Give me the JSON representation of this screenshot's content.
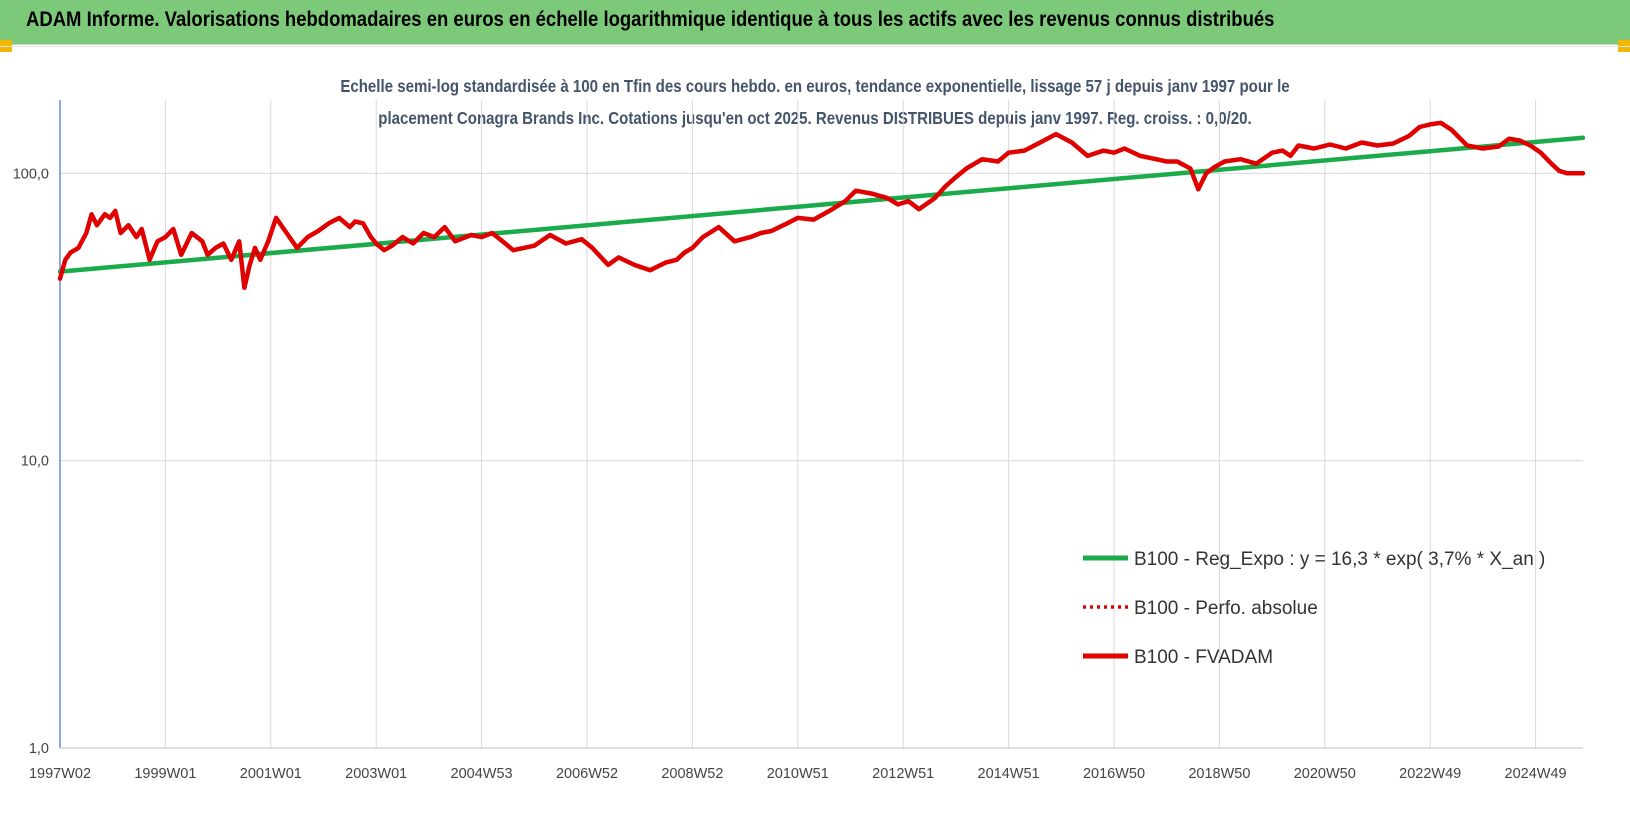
{
  "banner": {
    "title": "ADAM Informe. Valorisations hebdomadaires en euros en échelle logarithmique identique à tous les actifs avec les revenus connus distribués"
  },
  "chart_data": {
    "type": "line",
    "title_line1": "Echelle semi-log standardisée à 100 en Tfin des cours hebdo. en euros, tendance exponentielle, lissage 57 j depuis janv 1997 pour le",
    "title_line2": "placement Conagra Brands Inc. Cotations jusqu'en oct 2025.  Revenus DISTRIBUES depuis janv 1997.  Reg. croiss. : 0,0/20.",
    "y_scale": "log",
    "ylim": [
      1,
      180
    ],
    "xlim": [
      1997.0,
      2025.9
    ],
    "grid": true,
    "legend_position": "right-middle",
    "y_ticks": [
      {
        "value": 1,
        "label": "1,0"
      },
      {
        "value": 10,
        "label": "10,0"
      },
      {
        "value": 100,
        "label": "100,0"
      }
    ],
    "x_ticks": [
      {
        "value": 1997.0,
        "label": "1997W02"
      },
      {
        "value": 1999.0,
        "label": "1999W01"
      },
      {
        "value": 2001.0,
        "label": "2001W01"
      },
      {
        "value": 2003.0,
        "label": "2003W01"
      },
      {
        "value": 2005.0,
        "label": "2004W53"
      },
      {
        "value": 2007.0,
        "label": "2006W52"
      },
      {
        "value": 2009.0,
        "label": "2008W52"
      },
      {
        "value": 2011.0,
        "label": "2010W51"
      },
      {
        "value": 2013.0,
        "label": "2012W51"
      },
      {
        "value": 2015.0,
        "label": "2014W51"
      },
      {
        "value": 2017.0,
        "label": "2016W50"
      },
      {
        "value": 2019.0,
        "label": "2018W50"
      },
      {
        "value": 2021.0,
        "label": "2020W50"
      },
      {
        "value": 2023.0,
        "label": "2022W49"
      },
      {
        "value": 2025.0,
        "label": "2024W49"
      }
    ],
    "series": [
      {
        "name": "B100 - Reg_Expo : y = 16,3 * exp( 3,7% *  X_an )",
        "color": "#1aab4b",
        "style": "solid",
        "x": [
          1997.0,
          2025.9
        ],
        "y": [
          45.5,
          133
        ]
      },
      {
        "name": "B100 - Perfo. absolue",
        "color": "#e00000",
        "style": "dotted",
        "x": [],
        "y": []
      },
      {
        "name": "B100 - FVADAM",
        "color": "#e00000",
        "style": "solid",
        "x": [
          1997.0,
          1997.1,
          1997.2,
          1997.35,
          1997.5,
          1997.6,
          1997.7,
          1997.85,
          1997.95,
          1998.05,
          1998.15,
          1998.3,
          1998.45,
          1998.55,
          1998.7,
          1998.85,
          1999.0,
          1999.15,
          1999.3,
          1999.5,
          1999.7,
          1999.8,
          1999.95,
          2000.1,
          2000.25,
          2000.4,
          2000.5,
          2000.6,
          2000.7,
          2000.8,
          2000.95,
          2001.1,
          2001.3,
          2001.5,
          2001.7,
          2001.9,
          2002.1,
          2002.3,
          2002.5,
          2002.6,
          2002.75,
          2002.9,
          2003.0,
          2003.15,
          2003.3,
          2003.5,
          2003.7,
          2003.9,
          2004.1,
          2004.3,
          2004.5,
          2004.8,
          2005.0,
          2005.2,
          2005.45,
          2005.6,
          2005.8,
          2006.0,
          2006.3,
          2006.6,
          2006.9,
          2007.1,
          2007.4,
          2007.6,
          2007.9,
          2008.2,
          2008.5,
          2008.7,
          2008.85,
          2009.0,
          2009.2,
          2009.5,
          2009.8,
          2010.1,
          2010.3,
          2010.5,
          2010.8,
          2011.0,
          2011.3,
          2011.6,
          2011.9,
          2012.1,
          2012.4,
          2012.7,
          2012.9,
          2013.1,
          2013.3,
          2013.6,
          2013.8,
          2014.0,
          2014.2,
          2014.5,
          2014.8,
          2015.0,
          2015.3,
          2015.6,
          2015.9,
          2016.2,
          2016.5,
          2016.8,
          2017.0,
          2017.2,
          2017.5,
          2017.8,
          2018.0,
          2018.2,
          2018.45,
          2018.6,
          2018.75,
          2018.9,
          2019.1,
          2019.4,
          2019.7,
          2020.0,
          2020.2,
          2020.35,
          2020.5,
          2020.8,
          2021.1,
          2021.4,
          2021.7,
          2022.0,
          2022.3,
          2022.6,
          2022.8,
          2023.0,
          2023.2,
          2023.4,
          2023.7,
          2024.0,
          2024.3,
          2024.5,
          2024.7,
          2024.9,
          2025.1,
          2025.3,
          2025.45,
          2025.6,
          2025.75,
          2025.9
        ],
        "y": [
          43,
          50,
          53,
          55,
          62,
          72,
          66,
          72,
          70,
          74,
          62,
          66,
          60,
          64,
          50,
          58,
          60,
          64,
          52,
          62,
          58,
          52,
          55,
          57,
          50,
          58,
          40,
          48,
          55,
          50,
          58,
          70,
          62,
          55,
          60,
          63,
          67,
          70,
          65,
          68,
          67,
          60,
          57,
          54,
          56,
          60,
          57,
          62,
          60,
          65,
          58,
          61,
          60,
          62,
          57,
          54,
          55,
          56,
          61,
          57,
          59,
          55,
          48,
          51,
          48,
          46,
          49,
          50,
          53,
          55,
          60,
          65,
          58,
          60,
          62,
          63,
          67,
          70,
          69,
          74,
          80,
          87,
          85,
          82,
          78,
          80,
          75,
          82,
          90,
          97,
          104,
          112,
          110,
          118,
          120,
          128,
          137,
          128,
          115,
          120,
          118,
          122,
          115,
          112,
          110,
          110,
          104,
          88,
          100,
          105,
          110,
          112,
          108,
          118,
          120,
          115,
          125,
          122,
          126,
          122,
          128,
          125,
          127,
          135,
          145,
          148,
          150,
          142,
          125,
          122,
          124,
          132,
          130,
          125,
          118,
          108,
          102,
          100,
          100,
          100
        ]
      }
    ]
  }
}
